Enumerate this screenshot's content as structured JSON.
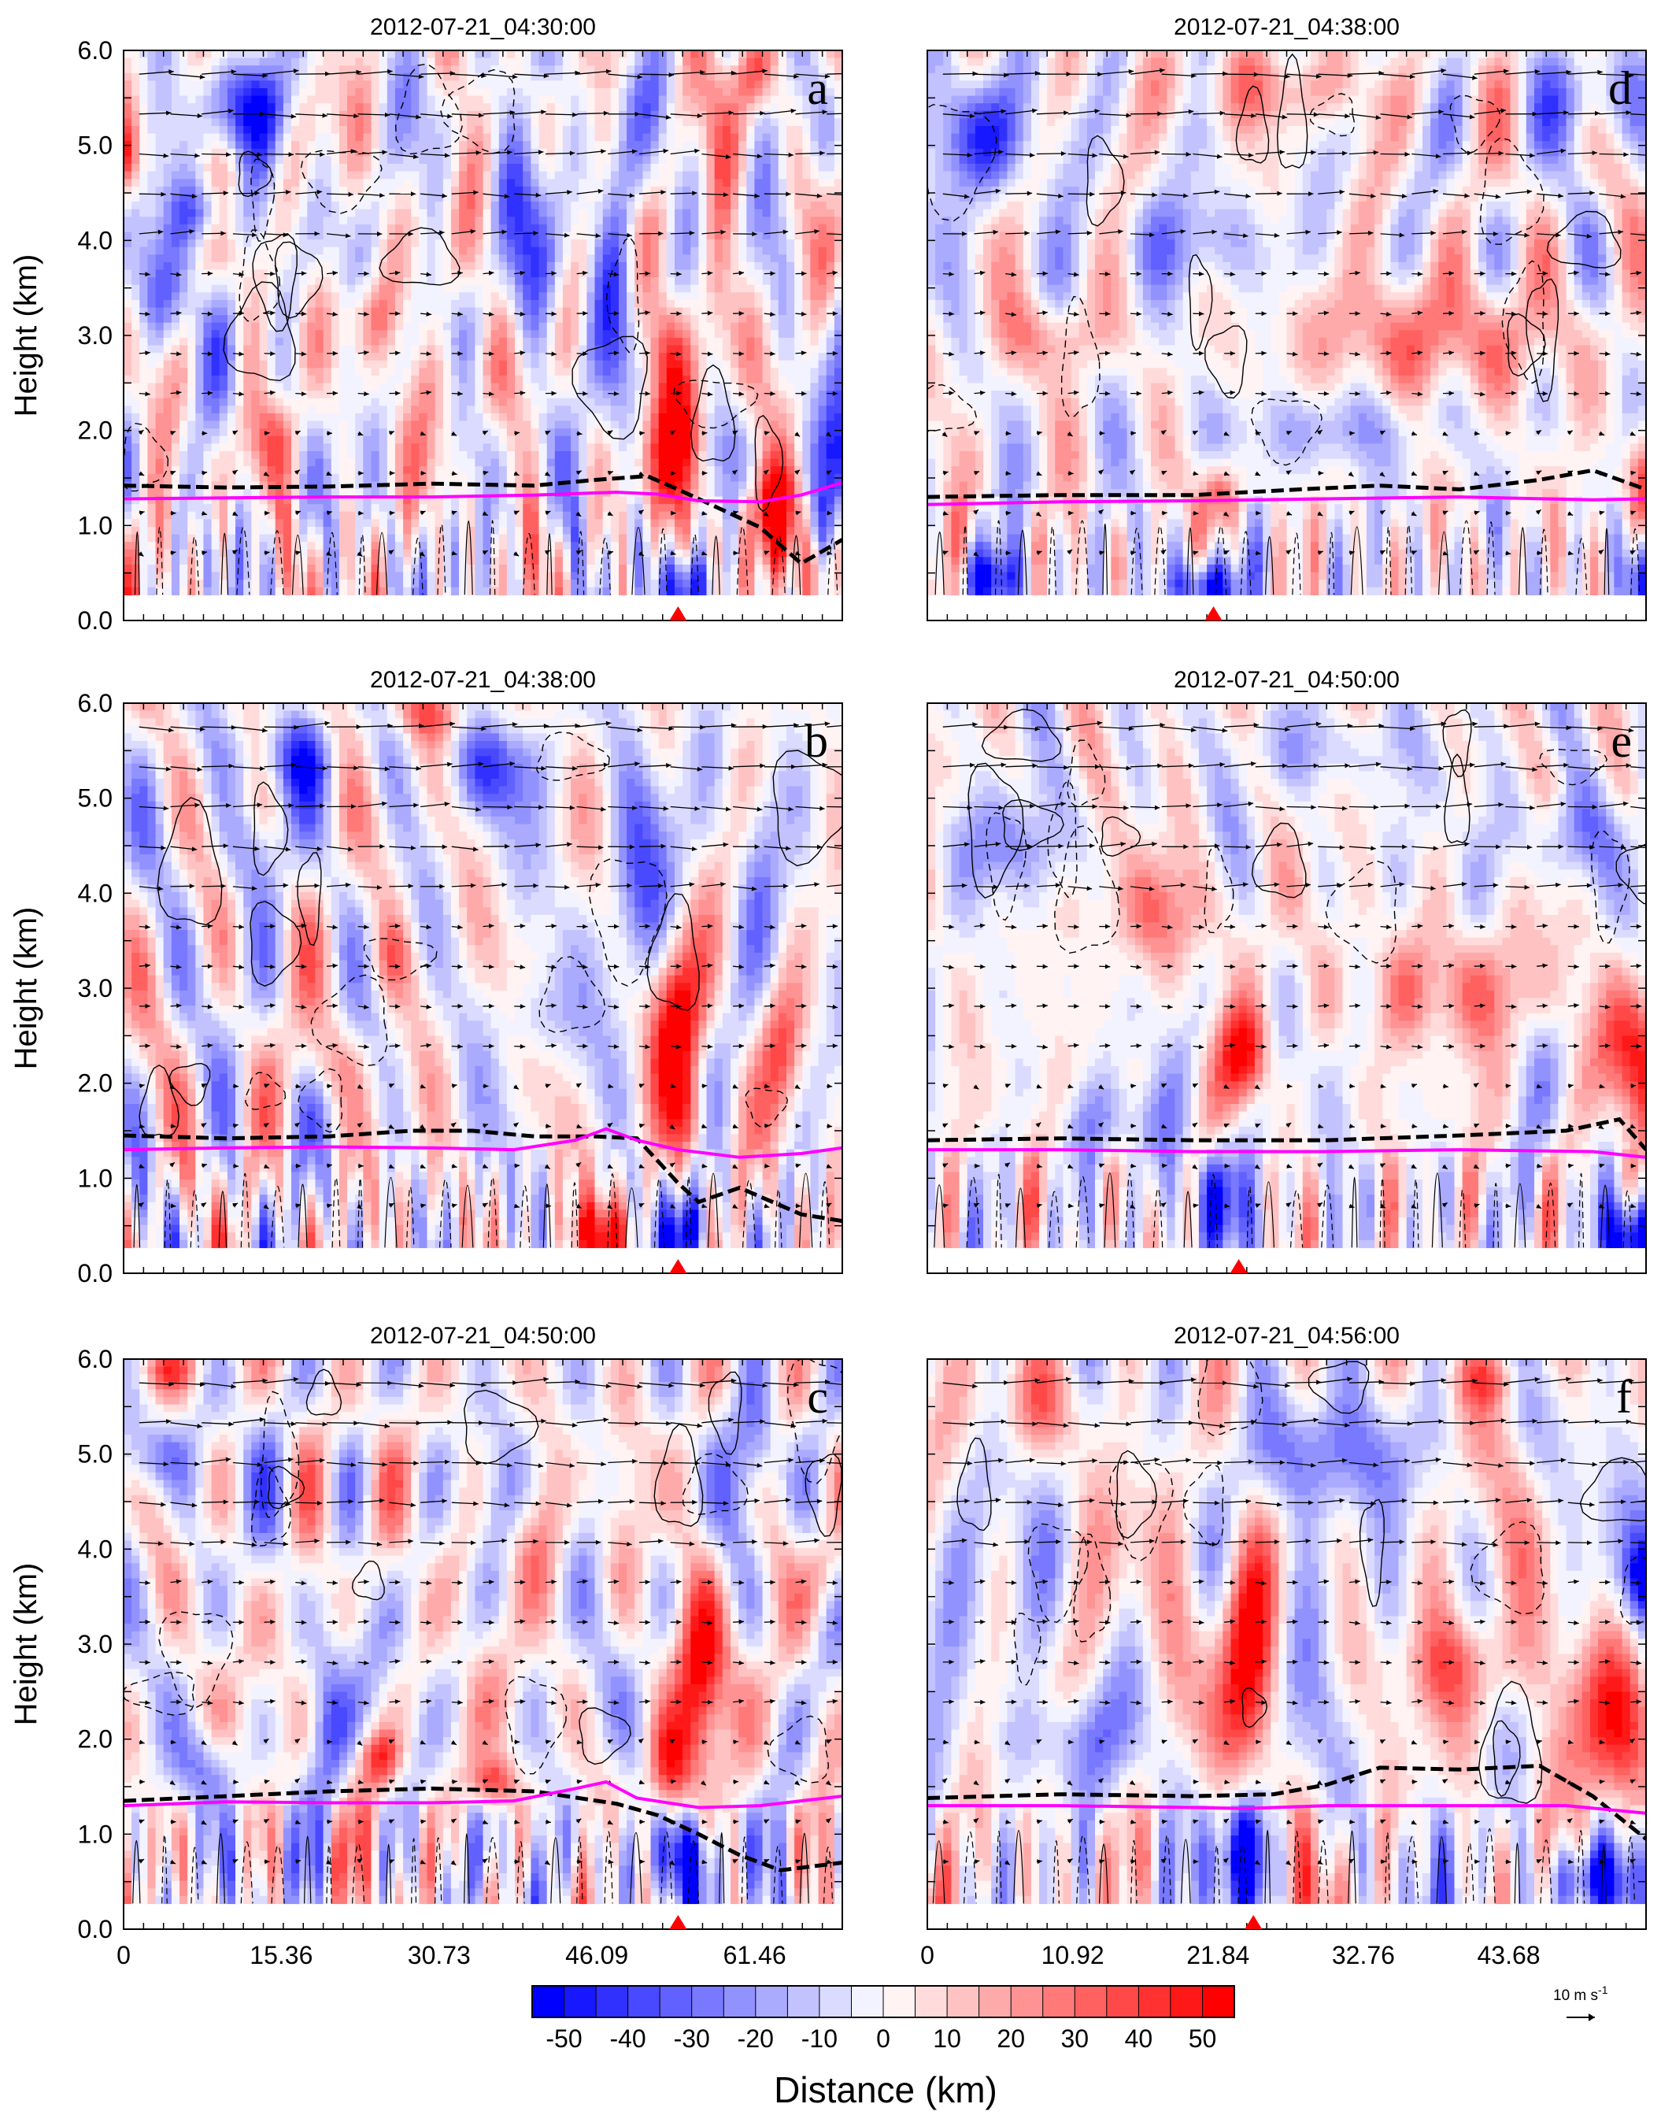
{
  "figure": {
    "xlabel": "Distance (km)",
    "colorbar": {
      "ticks": [
        "-50",
        "-40",
        "-30",
        "-20",
        "-10",
        "0",
        "10",
        "20",
        "30",
        "40",
        "50"
      ],
      "levels": [
        -55,
        -50,
        -45,
        -40,
        -35,
        -30,
        -25,
        -20,
        -15,
        -10,
        -5,
        0,
        5,
        10,
        15,
        20,
        25,
        30,
        35,
        40,
        45,
        50,
        55
      ],
      "low_color": "#0000ff",
      "mid_color": "#ffffff",
      "high_color": "#ff0000"
    },
    "reference_vector": {
      "label": "10 m s",
      "label_superscript": "-1"
    },
    "colors": {
      "contour_line": "#000000",
      "boundary_dashed_line": "#000000",
      "magenta_line": "#ff00ff",
      "marker": "#ff0000"
    }
  },
  "chart_data": [
    {
      "panel": "a",
      "type": "heatmap",
      "title": "2012-07-21_04:30:00",
      "ylabel": "Height (km)",
      "xlabel": "",
      "ylim": [
        0,
        6
      ],
      "xlim": [
        0,
        70
      ],
      "y_ticks": [
        "0.0",
        "1.0",
        "2.0",
        "3.0",
        "4.0",
        "5.0",
        "6.0"
      ],
      "x_ticks": [],
      "marker_x": 54,
      "dashed_line": [
        [
          0,
          1.42
        ],
        [
          10,
          1.4
        ],
        [
          20,
          1.41
        ],
        [
          30,
          1.44
        ],
        [
          40,
          1.42
        ],
        [
          46,
          1.48
        ],
        [
          51,
          1.52
        ],
        [
          54,
          1.38
        ],
        [
          58,
          1.18
        ],
        [
          62,
          0.98
        ],
        [
          66,
          0.6
        ],
        [
          70,
          0.85
        ]
      ],
      "magenta_line": [
        [
          0,
          1.28
        ],
        [
          10,
          1.29
        ],
        [
          20,
          1.3
        ],
        [
          30,
          1.3
        ],
        [
          40,
          1.32
        ],
        [
          48,
          1.35
        ],
        [
          52,
          1.33
        ],
        [
          56,
          1.26
        ],
        [
          62,
          1.25
        ],
        [
          66,
          1.32
        ],
        [
          70,
          1.45
        ]
      ],
      "features": [
        {
          "x": 54,
          "y": 1.9,
          "rx": 2.5,
          "ry": 0.8,
          "amp": 55
        },
        {
          "x": 53,
          "y": 2.9,
          "rx": 2,
          "ry": 0.5,
          "amp": 30
        },
        {
          "x": 55,
          "y": 0.35,
          "rx": 2.2,
          "ry": 0.35,
          "amp": -55
        },
        {
          "x": 63,
          "y": 1.1,
          "rx": 3,
          "ry": 0.5,
          "amp": 45
        },
        {
          "x": 68,
          "y": 0.5,
          "rx": 2,
          "ry": 0.4,
          "amp": 35
        },
        {
          "x": 70,
          "y": 1.7,
          "rx": 2,
          "ry": 0.7,
          "amp": -55
        },
        {
          "x": 61,
          "y": 5.8,
          "rx": 2,
          "ry": 0.4,
          "amp": 35
        },
        {
          "x": 12,
          "y": 5.4,
          "rx": 4,
          "ry": 0.5,
          "amp": -40
        },
        {
          "x": 8,
          "y": 4.3,
          "rx": 3,
          "ry": 0.35,
          "amp": -35
        },
        {
          "x": 4,
          "y": 3.4,
          "rx": 3,
          "ry": 0.6,
          "amp": -30
        },
        {
          "x": 40,
          "y": 4.0,
          "rx": 3,
          "ry": 1.5,
          "amp": -25
        },
        {
          "x": 48,
          "y": 3.6,
          "rx": 2,
          "ry": 1.6,
          "amp": -28
        },
        {
          "x": 0,
          "y": 4.9,
          "rx": 1.5,
          "ry": 0.4,
          "amp": 40
        },
        {
          "x": 24,
          "y": 3.2,
          "rx": 3,
          "ry": 0.4,
          "amp": 20
        },
        {
          "x": 33,
          "y": 2.5,
          "rx": 4,
          "ry": 0.5,
          "amp": 18
        },
        {
          "x": 15,
          "y": 1.9,
          "rx": 3,
          "ry": 0.4,
          "amp": 18
        },
        {
          "x": 58,
          "y": 4.0,
          "rx": 1.5,
          "ry": 1.6,
          "amp": 15
        }
      ]
    },
    {
      "panel": "b",
      "type": "heatmap",
      "title": "2012-07-21_04:38:00",
      "ylabel": "Height (km)",
      "xlabel": "",
      "ylim": [
        0,
        6
      ],
      "xlim": [
        0,
        70
      ],
      "y_ticks": [
        "0.0",
        "1.0",
        "2.0",
        "3.0",
        "4.0",
        "5.0",
        "6.0"
      ],
      "x_ticks": [],
      "marker_x": 54,
      "dashed_line": [
        [
          0,
          1.45
        ],
        [
          10,
          1.42
        ],
        [
          20,
          1.44
        ],
        [
          28,
          1.5
        ],
        [
          34,
          1.5
        ],
        [
          40,
          1.44
        ],
        [
          46,
          1.44
        ],
        [
          50,
          1.42
        ],
        [
          54,
          0.95
        ],
        [
          56,
          0.75
        ],
        [
          60,
          0.9
        ],
        [
          66,
          0.62
        ],
        [
          70,
          0.55
        ]
      ],
      "magenta_line": [
        [
          0,
          1.3
        ],
        [
          10,
          1.32
        ],
        [
          20,
          1.33
        ],
        [
          30,
          1.32
        ],
        [
          38,
          1.3
        ],
        [
          44,
          1.4
        ],
        [
          47,
          1.52
        ],
        [
          50,
          1.4
        ],
        [
          54,
          1.3
        ],
        [
          60,
          1.22
        ],
        [
          66,
          1.26
        ],
        [
          70,
          1.32
        ]
      ],
      "features": [
        {
          "x": 54,
          "y": 2.6,
          "rx": 2.5,
          "ry": 0.9,
          "amp": 55
        },
        {
          "x": 55,
          "y": 1.6,
          "rx": 2,
          "ry": 0.5,
          "amp": 35
        },
        {
          "x": 55,
          "y": 0.4,
          "rx": 2.2,
          "ry": 0.4,
          "amp": -55
        },
        {
          "x": 46,
          "y": 0.4,
          "rx": 3,
          "ry": 0.35,
          "amp": 45
        },
        {
          "x": 36,
          "y": 5.3,
          "rx": 4,
          "ry": 0.5,
          "amp": -35
        },
        {
          "x": 16,
          "y": 5.4,
          "rx": 6,
          "ry": 0.4,
          "amp": -25
        },
        {
          "x": 50,
          "y": 4.2,
          "rx": 3,
          "ry": 1.2,
          "amp": -30
        },
        {
          "x": 64,
          "y": 2.4,
          "rx": 2,
          "ry": 0.7,
          "amp": 30
        },
        {
          "x": 26,
          "y": 3.3,
          "rx": 2,
          "ry": 0.4,
          "amp": 22
        },
        {
          "x": 30,
          "y": 5.9,
          "rx": 4,
          "ry": 0.3,
          "amp": 25
        },
        {
          "x": 12,
          "y": 4.5,
          "rx": 3,
          "ry": 0.5,
          "amp": -20
        },
        {
          "x": 20,
          "y": 2.2,
          "rx": 3,
          "ry": 0.4,
          "amp": 18
        },
        {
          "x": 40,
          "y": 2.7,
          "rx": 3,
          "ry": 0.5,
          "amp": -20
        },
        {
          "x": 62,
          "y": 4.5,
          "rx": 2,
          "ry": 1.0,
          "amp": -22
        }
      ]
    },
    {
      "panel": "c",
      "type": "heatmap",
      "title": "2012-07-21_04:50:00",
      "ylabel": "Height (km)",
      "xlabel": "",
      "ylim": [
        0,
        6
      ],
      "xlim": [
        0,
        70
      ],
      "y_ticks": [
        "0.0",
        "1.0",
        "2.0",
        "3.0",
        "4.0",
        "5.0",
        "6.0"
      ],
      "x_ticks": [
        "0",
        "15.36",
        "30.73",
        "46.09",
        "61.46"
      ],
      "x_tick_values": [
        0,
        15.36,
        30.73,
        46.09,
        61.46
      ],
      "marker_x": 54,
      "dashed_line": [
        [
          0,
          1.35
        ],
        [
          10,
          1.4
        ],
        [
          20,
          1.45
        ],
        [
          30,
          1.48
        ],
        [
          40,
          1.45
        ],
        [
          48,
          1.32
        ],
        [
          52,
          1.2
        ],
        [
          56,
          1.0
        ],
        [
          60,
          0.78
        ],
        [
          64,
          0.62
        ],
        [
          70,
          0.7
        ]
      ],
      "magenta_line": [
        [
          0,
          1.3
        ],
        [
          10,
          1.34
        ],
        [
          20,
          1.33
        ],
        [
          30,
          1.33
        ],
        [
          38,
          1.35
        ],
        [
          44,
          1.48
        ],
        [
          47,
          1.55
        ],
        [
          50,
          1.38
        ],
        [
          56,
          1.28
        ],
        [
          62,
          1.3
        ],
        [
          70,
          1.4
        ]
      ],
      "features": [
        {
          "x": 56,
          "y": 2.6,
          "rx": 2.5,
          "ry": 1.0,
          "amp": 55
        },
        {
          "x": 53,
          "y": 1.7,
          "rx": 2,
          "ry": 0.5,
          "amp": 40
        },
        {
          "x": 55,
          "y": 0.7,
          "rx": 2.5,
          "ry": 0.5,
          "amp": -55
        },
        {
          "x": 48,
          "y": 0.8,
          "rx": 2,
          "ry": 0.5,
          "amp": -30
        },
        {
          "x": 25,
          "y": 1.8,
          "rx": 2,
          "ry": 0.3,
          "amp": 38
        },
        {
          "x": 36,
          "y": 1.55,
          "rx": 2,
          "ry": 0.25,
          "amp": 40
        },
        {
          "x": 3,
          "y": 5.0,
          "rx": 3,
          "ry": 0.4,
          "amp": -35
        },
        {
          "x": 20,
          "y": 2.2,
          "rx": 2,
          "ry": 0.8,
          "amp": -28
        },
        {
          "x": 8,
          "y": 1.7,
          "rx": 3,
          "ry": 0.4,
          "amp": -25
        },
        {
          "x": 68,
          "y": 3.7,
          "rx": 2,
          "ry": 0.5,
          "amp": 25
        },
        {
          "x": 4,
          "y": 5.9,
          "rx": 3,
          "ry": 0.25,
          "amp": 30
        },
        {
          "x": 38,
          "y": 4.0,
          "rx": 3,
          "ry": 0.5,
          "amp": 15
        },
        {
          "x": 62,
          "y": 5.0,
          "rx": 2,
          "ry": 0.7,
          "amp": -25
        }
      ]
    },
    {
      "panel": "d",
      "type": "heatmap",
      "title": "2012-07-21_04:38:00",
      "ylabel": "",
      "xlabel": "",
      "ylim": [
        0,
        6
      ],
      "xlim": [
        0,
        54
      ],
      "y_ticks": [],
      "x_ticks": [],
      "marker_x": 21.5,
      "dashed_line": [
        [
          0,
          1.3
        ],
        [
          10,
          1.32
        ],
        [
          20,
          1.32
        ],
        [
          28,
          1.38
        ],
        [
          34,
          1.42
        ],
        [
          40,
          1.38
        ],
        [
          46,
          1.48
        ],
        [
          50,
          1.58
        ],
        [
          54,
          1.38
        ]
      ],
      "magenta_line": [
        [
          0,
          1.22
        ],
        [
          10,
          1.25
        ],
        [
          20,
          1.26
        ],
        [
          30,
          1.28
        ],
        [
          40,
          1.3
        ],
        [
          50,
          1.27
        ],
        [
          54,
          1.28
        ]
      ],
      "features": [
        {
          "x": 4,
          "y": 5.1,
          "rx": 4,
          "ry": 0.6,
          "amp": -40
        },
        {
          "x": 50,
          "y": 5.5,
          "rx": 3,
          "ry": 0.5,
          "amp": -30
        },
        {
          "x": 38,
          "y": 3.0,
          "rx": 10,
          "ry": 0.6,
          "amp": 28
        },
        {
          "x": 9,
          "y": 3.0,
          "rx": 4,
          "ry": 0.4,
          "amp": 22
        },
        {
          "x": 22,
          "y": 1.3,
          "rx": 1.5,
          "ry": 0.35,
          "amp": 35
        },
        {
          "x": 21,
          "y": 0.35,
          "rx": 2.5,
          "ry": 0.3,
          "amp": -55
        },
        {
          "x": 5,
          "y": 0.45,
          "rx": 3,
          "ry": 0.3,
          "amp": -35
        },
        {
          "x": 54,
          "y": 0.4,
          "rx": 1.5,
          "ry": 0.4,
          "amp": -50
        },
        {
          "x": 54,
          "y": 1.4,
          "rx": 1.5,
          "ry": 0.5,
          "amp": 45
        },
        {
          "x": 26,
          "y": 5.6,
          "rx": 8,
          "ry": 0.4,
          "amp": 20
        },
        {
          "x": 20,
          "y": 4.0,
          "rx": 6,
          "ry": 0.5,
          "amp": -20
        },
        {
          "x": 30,
          "y": 2.0,
          "rx": 8,
          "ry": 0.4,
          "amp": -18
        }
      ]
    },
    {
      "panel": "e",
      "type": "heatmap",
      "title": "2012-07-21_04:50:00",
      "ylabel": "",
      "xlabel": "",
      "ylim": [
        0,
        6
      ],
      "xlim": [
        0,
        54
      ],
      "y_ticks": [],
      "x_ticks": [],
      "marker_x": 23.4,
      "dashed_line": [
        [
          0,
          1.4
        ],
        [
          10,
          1.42
        ],
        [
          20,
          1.4
        ],
        [
          30,
          1.4
        ],
        [
          40,
          1.45
        ],
        [
          48,
          1.5
        ],
        [
          52,
          1.62
        ],
        [
          54,
          1.3
        ]
      ],
      "magenta_line": [
        [
          0,
          1.3
        ],
        [
          10,
          1.3
        ],
        [
          20,
          1.28
        ],
        [
          30,
          1.28
        ],
        [
          40,
          1.3
        ],
        [
          50,
          1.28
        ],
        [
          54,
          1.22
        ]
      ],
      "features": [
        {
          "x": 24,
          "y": 2.3,
          "rx": 1.8,
          "ry": 0.5,
          "amp": 45
        },
        {
          "x": 22,
          "y": 0.8,
          "rx": 2,
          "ry": 0.6,
          "amp": -50
        },
        {
          "x": 53,
          "y": 2.3,
          "rx": 2.5,
          "ry": 0.7,
          "amp": 45
        },
        {
          "x": 53,
          "y": 0.4,
          "rx": 2.5,
          "ry": 0.4,
          "amp": -55
        },
        {
          "x": 40,
          "y": 3.0,
          "rx": 8,
          "ry": 0.6,
          "amp": 25
        },
        {
          "x": 18,
          "y": 3.8,
          "rx": 6,
          "ry": 0.6,
          "amp": 20
        },
        {
          "x": 6,
          "y": 4.5,
          "rx": 4,
          "ry": 0.5,
          "amp": -22
        },
        {
          "x": 48,
          "y": 4.6,
          "rx": 4,
          "ry": 0.5,
          "amp": -25
        },
        {
          "x": 14,
          "y": 1.6,
          "rx": 4,
          "ry": 0.4,
          "amp": -18
        },
        {
          "x": 30,
          "y": 5.5,
          "rx": 6,
          "ry": 0.4,
          "amp": -15
        }
      ]
    },
    {
      "panel": "f",
      "type": "heatmap",
      "title": "2012-07-21_04:56:00",
      "ylabel": "",
      "xlabel": "",
      "ylim": [
        0,
        6
      ],
      "xlim": [
        0,
        54
      ],
      "y_ticks": [],
      "x_ticks": [
        "0",
        "10.92",
        "21.84",
        "32.76",
        "43.68"
      ],
      "x_tick_values": [
        0,
        10.92,
        21.84,
        32.76,
        43.68
      ],
      "marker_x": 24.5,
      "dashed_line": [
        [
          0,
          1.38
        ],
        [
          10,
          1.42
        ],
        [
          20,
          1.4
        ],
        [
          26,
          1.42
        ],
        [
          30,
          1.52
        ],
        [
          34,
          1.7
        ],
        [
          40,
          1.68
        ],
        [
          46,
          1.72
        ],
        [
          50,
          1.4
        ],
        [
          54,
          0.95
        ]
      ],
      "magenta_line": [
        [
          0,
          1.3
        ],
        [
          10,
          1.3
        ],
        [
          20,
          1.28
        ],
        [
          24,
          1.27
        ],
        [
          30,
          1.3
        ],
        [
          40,
          1.3
        ],
        [
          48,
          1.3
        ],
        [
          54,
          1.22
        ]
      ],
      "features": [
        {
          "x": 24,
          "y": 3.0,
          "rx": 2.2,
          "ry": 1.2,
          "amp": 55
        },
        {
          "x": 24,
          "y": 0.8,
          "rx": 2,
          "ry": 0.6,
          "amp": -55
        },
        {
          "x": 50,
          "y": 2.1,
          "rx": 3,
          "ry": 0.9,
          "amp": 45
        },
        {
          "x": 50,
          "y": 0.5,
          "rx": 3,
          "ry": 0.4,
          "amp": -50
        },
        {
          "x": 54,
          "y": 3.7,
          "rx": 1.5,
          "ry": 0.4,
          "amp": -40
        },
        {
          "x": 30,
          "y": 5.0,
          "rx": 6,
          "ry": 0.6,
          "amp": -28
        },
        {
          "x": 8,
          "y": 5.5,
          "rx": 4,
          "ry": 0.5,
          "amp": 20
        },
        {
          "x": 40,
          "y": 2.8,
          "rx": 6,
          "ry": 0.5,
          "amp": 20
        },
        {
          "x": 10,
          "y": 2.0,
          "rx": 5,
          "ry": 0.5,
          "amp": -20
        },
        {
          "x": 42,
          "y": 5.8,
          "rx": 3,
          "ry": 0.3,
          "amp": 25
        }
      ]
    }
  ]
}
